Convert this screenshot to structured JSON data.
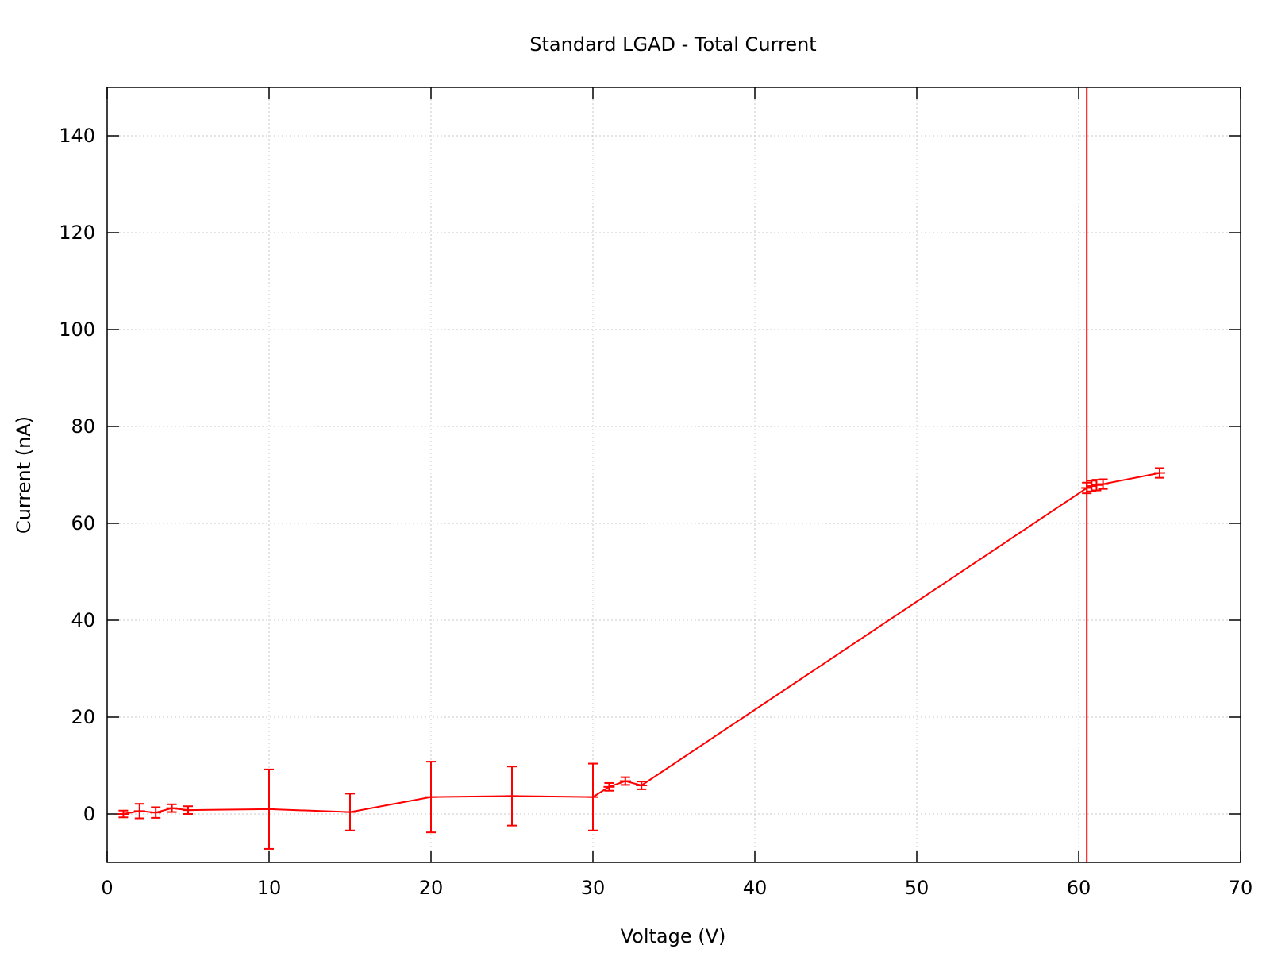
{
  "chart_data": {
    "type": "line",
    "title": "Standard LGAD - Total Current",
    "xlabel": "Voltage (V)",
    "ylabel": "Current (nA)",
    "xlim": [
      0,
      70
    ],
    "ylim": [
      -10,
      150
    ],
    "xticks": [
      0,
      10,
      20,
      30,
      40,
      50,
      60,
      70
    ],
    "yticks": [
      0,
      20,
      40,
      60,
      80,
      100,
      120,
      140
    ],
    "grid": true,
    "legend": "none",
    "color": "#ff0000",
    "vertical_line_x": 60.5,
    "series": [
      {
        "x": [
          1,
          2,
          3,
          4,
          5,
          10,
          15,
          20,
          25,
          30,
          31,
          32,
          33,
          60.5,
          60.8,
          61.1,
          61.5,
          65
        ],
        "values": [
          0.0,
          0.6,
          0.3,
          1.2,
          0.8,
          1.0,
          0.4,
          3.5,
          3.7,
          3.5,
          5.6,
          6.8,
          5.9,
          67.3,
          67.7,
          67.9,
          68.1,
          70.4
        ],
        "errors": [
          0.7,
          1.5,
          1.1,
          0.8,
          0.8,
          8.2,
          3.8,
          7.3,
          6.1,
          6.9,
          0.8,
          0.8,
          0.8,
          1.1,
          1.1,
          1.1,
          1.0,
          1.0
        ]
      }
    ]
  }
}
